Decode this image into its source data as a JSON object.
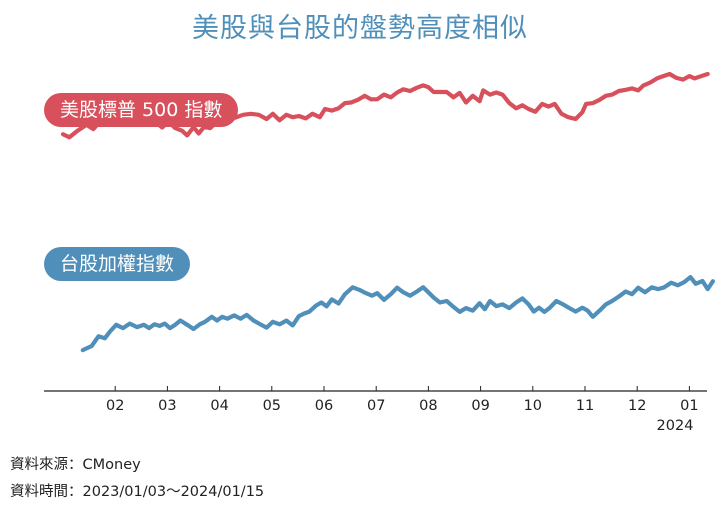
{
  "title": "美股與台股的盤勢高度相似",
  "chart_data": {
    "type": "line",
    "title": "美股與台股的盤勢高度相似",
    "x_domain": [
      0,
      12.5
    ],
    "y_domain": [
      0,
      100
    ],
    "xlabel": "",
    "ylabel": "",
    "x_ticks": [
      {
        "label": "02",
        "value": 1.0
      },
      {
        "label": "03",
        "value": 2.0
      },
      {
        "label": "04",
        "value": 3.0
      },
      {
        "label": "05",
        "value": 4.0
      },
      {
        "label": "06",
        "value": 5.0
      },
      {
        "label": "07",
        "value": 6.0
      },
      {
        "label": "08",
        "value": 7.0
      },
      {
        "label": "09",
        "value": 8.0
      },
      {
        "label": "10",
        "value": 9.0
      },
      {
        "label": "11",
        "value": 10.0
      },
      {
        "label": "12",
        "value": 11.0
      },
      {
        "label": "01",
        "value": 12.0
      }
    ],
    "year_label": "2024",
    "grid": false,
    "series": [
      {
        "name": "美股標普 500 指數",
        "color": "#d8505c",
        "points": [
          [
            0.0,
            54.7
          ],
          [
            0.12,
            52.4
          ],
          [
            0.28,
            57.4
          ],
          [
            0.45,
            61.8
          ],
          [
            0.58,
            58.6
          ],
          [
            0.72,
            64.6
          ],
          [
            0.82,
            62.1
          ],
          [
            0.95,
            70.1
          ],
          [
            1.08,
            67.5
          ],
          [
            1.2,
            69.7
          ],
          [
            1.32,
            65.7
          ],
          [
            1.45,
            68.8
          ],
          [
            1.58,
            63.6
          ],
          [
            1.7,
            62.1
          ],
          [
            1.8,
            62.9
          ],
          [
            1.9,
            59.8
          ],
          [
            2.02,
            64.2
          ],
          [
            2.15,
            59.3
          ],
          [
            2.28,
            57.4
          ],
          [
            2.38,
            53.8
          ],
          [
            2.5,
            60.1
          ],
          [
            2.6,
            55.3
          ],
          [
            2.7,
            60.1
          ],
          [
            2.82,
            59.3
          ],
          [
            2.95,
            64.2
          ],
          [
            3.05,
            66.2
          ],
          [
            3.15,
            68.8
          ],
          [
            3.3,
            67.2
          ],
          [
            3.45,
            69.3
          ],
          [
            3.6,
            70.1
          ],
          [
            3.75,
            69.3
          ],
          [
            3.9,
            66.2
          ],
          [
            4.02,
            70.1
          ],
          [
            4.15,
            65.2
          ],
          [
            4.28,
            69.3
          ],
          [
            4.4,
            67.5
          ],
          [
            4.52,
            68.4
          ],
          [
            4.65,
            66.6
          ],
          [
            4.78,
            70.1
          ],
          [
            4.92,
            67.5
          ],
          [
            5.02,
            73.7
          ],
          [
            5.15,
            72.5
          ],
          [
            5.28,
            74.2
          ],
          [
            5.4,
            78.1
          ],
          [
            5.52,
            78.6
          ],
          [
            5.65,
            80.6
          ],
          [
            5.78,
            83.6
          ],
          [
            5.9,
            81.0
          ],
          [
            6.02,
            81.0
          ],
          [
            6.15,
            84.5
          ],
          [
            6.28,
            82.5
          ],
          [
            6.4,
            86.1
          ],
          [
            6.52,
            88.5
          ],
          [
            6.65,
            87.2
          ],
          [
            6.78,
            89.7
          ],
          [
            6.9,
            91.4
          ],
          [
            7.0,
            90.1
          ],
          [
            7.1,
            86.5
          ],
          [
            7.22,
            86.5
          ],
          [
            7.35,
            86.5
          ],
          [
            7.48,
            82.5
          ],
          [
            7.6,
            85.8
          ],
          [
            7.72,
            78.6
          ],
          [
            7.85,
            83.6
          ],
          [
            7.98,
            79.5
          ],
          [
            8.05,
            87.7
          ],
          [
            8.18,
            84.5
          ],
          [
            8.3,
            86.1
          ],
          [
            8.42,
            84.5
          ],
          [
            8.55,
            78.1
          ],
          [
            8.68,
            74.2
          ],
          [
            8.8,
            76.5
          ],
          [
            8.92,
            73.7
          ],
          [
            9.05,
            71.6
          ],
          [
            9.18,
            77.5
          ],
          [
            9.3,
            75.5
          ],
          [
            9.42,
            77.5
          ],
          [
            9.55,
            70.1
          ],
          [
            9.68,
            67.5
          ],
          [
            9.82,
            66.2
          ],
          [
            9.95,
            71.3
          ],
          [
            10.02,
            77.5
          ],
          [
            10.15,
            78.1
          ],
          [
            10.28,
            80.6
          ],
          [
            10.4,
            83.6
          ],
          [
            10.52,
            84.5
          ],
          [
            10.65,
            87.2
          ],
          [
            10.78,
            88.1
          ],
          [
            10.9,
            89.2
          ],
          [
            11.02,
            87.7
          ],
          [
            11.12,
            91.4
          ],
          [
            11.25,
            93.6
          ],
          [
            11.38,
            96.7
          ],
          [
            11.5,
            98.4
          ],
          [
            11.62,
            100.0
          ],
          [
            11.75,
            97.1
          ],
          [
            11.88,
            95.8
          ],
          [
            12.0,
            98.4
          ],
          [
            12.1,
            96.7
          ],
          [
            12.25,
            98.7
          ],
          [
            12.35,
            100.0
          ]
        ]
      },
      {
        "name": "台股加權指數",
        "color": "#4f8fba",
        "points": [
          [
            0.38,
            10.2
          ],
          [
            0.55,
            13.2
          ],
          [
            0.68,
            20.4
          ],
          [
            0.8,
            18.9
          ],
          [
            0.9,
            23.9
          ],
          [
            1.02,
            28.8
          ],
          [
            1.15,
            26.4
          ],
          [
            1.28,
            29.7
          ],
          [
            1.42,
            27.1
          ],
          [
            1.55,
            28.8
          ],
          [
            1.65,
            26.4
          ],
          [
            1.75,
            29.2
          ],
          [
            1.85,
            28.0
          ],
          [
            1.95,
            29.7
          ],
          [
            2.05,
            26.4
          ],
          [
            2.15,
            28.8
          ],
          [
            2.25,
            32.0
          ],
          [
            2.38,
            28.8
          ],
          [
            2.5,
            25.7
          ],
          [
            2.62,
            29.2
          ],
          [
            2.72,
            31.0
          ],
          [
            2.85,
            34.7
          ],
          [
            2.95,
            32.0
          ],
          [
            3.05,
            34.7
          ],
          [
            3.15,
            33.3
          ],
          [
            3.28,
            35.7
          ],
          [
            3.4,
            33.3
          ],
          [
            3.52,
            36.1
          ],
          [
            3.65,
            32.0
          ],
          [
            3.78,
            29.2
          ],
          [
            3.9,
            26.8
          ],
          [
            4.02,
            31.0
          ],
          [
            4.15,
            29.2
          ],
          [
            4.28,
            31.9
          ],
          [
            4.4,
            28.4
          ],
          [
            4.52,
            35.2
          ],
          [
            4.62,
            37.1
          ],
          [
            4.72,
            38.5
          ],
          [
            4.85,
            43.1
          ],
          [
            4.95,
            45.2
          ],
          [
            5.05,
            42.4
          ],
          [
            5.15,
            47.5
          ],
          [
            5.28,
            44.5
          ],
          [
            5.4,
            51.3
          ],
          [
            5.55,
            56.4
          ],
          [
            5.68,
            54.5
          ],
          [
            5.8,
            52.1
          ],
          [
            5.92,
            50.2
          ],
          [
            6.02,
            52.1
          ],
          [
            6.15,
            47.1
          ],
          [
            6.28,
            51.3
          ],
          [
            6.4,
            56.1
          ],
          [
            6.52,
            52.7
          ],
          [
            6.65,
            50.2
          ],
          [
            6.78,
            53.3
          ],
          [
            6.9,
            56.4
          ],
          [
            7.0,
            52.7
          ],
          [
            7.1,
            48.9
          ],
          [
            7.22,
            45.2
          ],
          [
            7.35,
            46.3
          ],
          [
            7.48,
            42.0
          ],
          [
            7.6,
            38.3
          ],
          [
            7.72,
            41.1
          ],
          [
            7.85,
            39.3
          ],
          [
            7.98,
            44.7
          ],
          [
            8.08,
            40.3
          ],
          [
            8.18,
            46.3
          ],
          [
            8.3,
            42.6
          ],
          [
            8.42,
            43.8
          ],
          [
            8.55,
            41.1
          ],
          [
            8.68,
            45.2
          ],
          [
            8.8,
            48.2
          ],
          [
            8.92,
            43.8
          ],
          [
            9.02,
            38.5
          ],
          [
            9.12,
            41.4
          ],
          [
            9.22,
            38.3
          ],
          [
            9.32,
            41.1
          ],
          [
            9.45,
            46.3
          ],
          [
            9.58,
            43.8
          ],
          [
            9.7,
            41.1
          ],
          [
            9.82,
            38.5
          ],
          [
            9.95,
            41.4
          ],
          [
            10.05,
            39.3
          ],
          [
            10.15,
            34.7
          ],
          [
            10.28,
            39.3
          ],
          [
            10.4,
            43.8
          ],
          [
            10.52,
            46.3
          ],
          [
            10.65,
            49.6
          ],
          [
            10.78,
            53.3
          ],
          [
            10.9,
            51.3
          ],
          [
            11.02,
            56.1
          ],
          [
            11.15,
            52.7
          ],
          [
            11.28,
            56.4
          ],
          [
            11.4,
            55.1
          ],
          [
            11.52,
            56.4
          ],
          [
            11.65,
            59.8
          ],
          [
            11.78,
            57.9
          ],
          [
            11.9,
            60.2
          ],
          [
            12.02,
            63.9
          ],
          [
            12.12,
            59.0
          ],
          [
            12.25,
            61.0
          ],
          [
            12.35,
            55.1
          ],
          [
            12.45,
            60.9
          ]
        ]
      }
    ]
  },
  "source": {
    "line1": "資料來源：CMoney",
    "line2": "資料時間：2023/01/03～2024/01/15"
  }
}
